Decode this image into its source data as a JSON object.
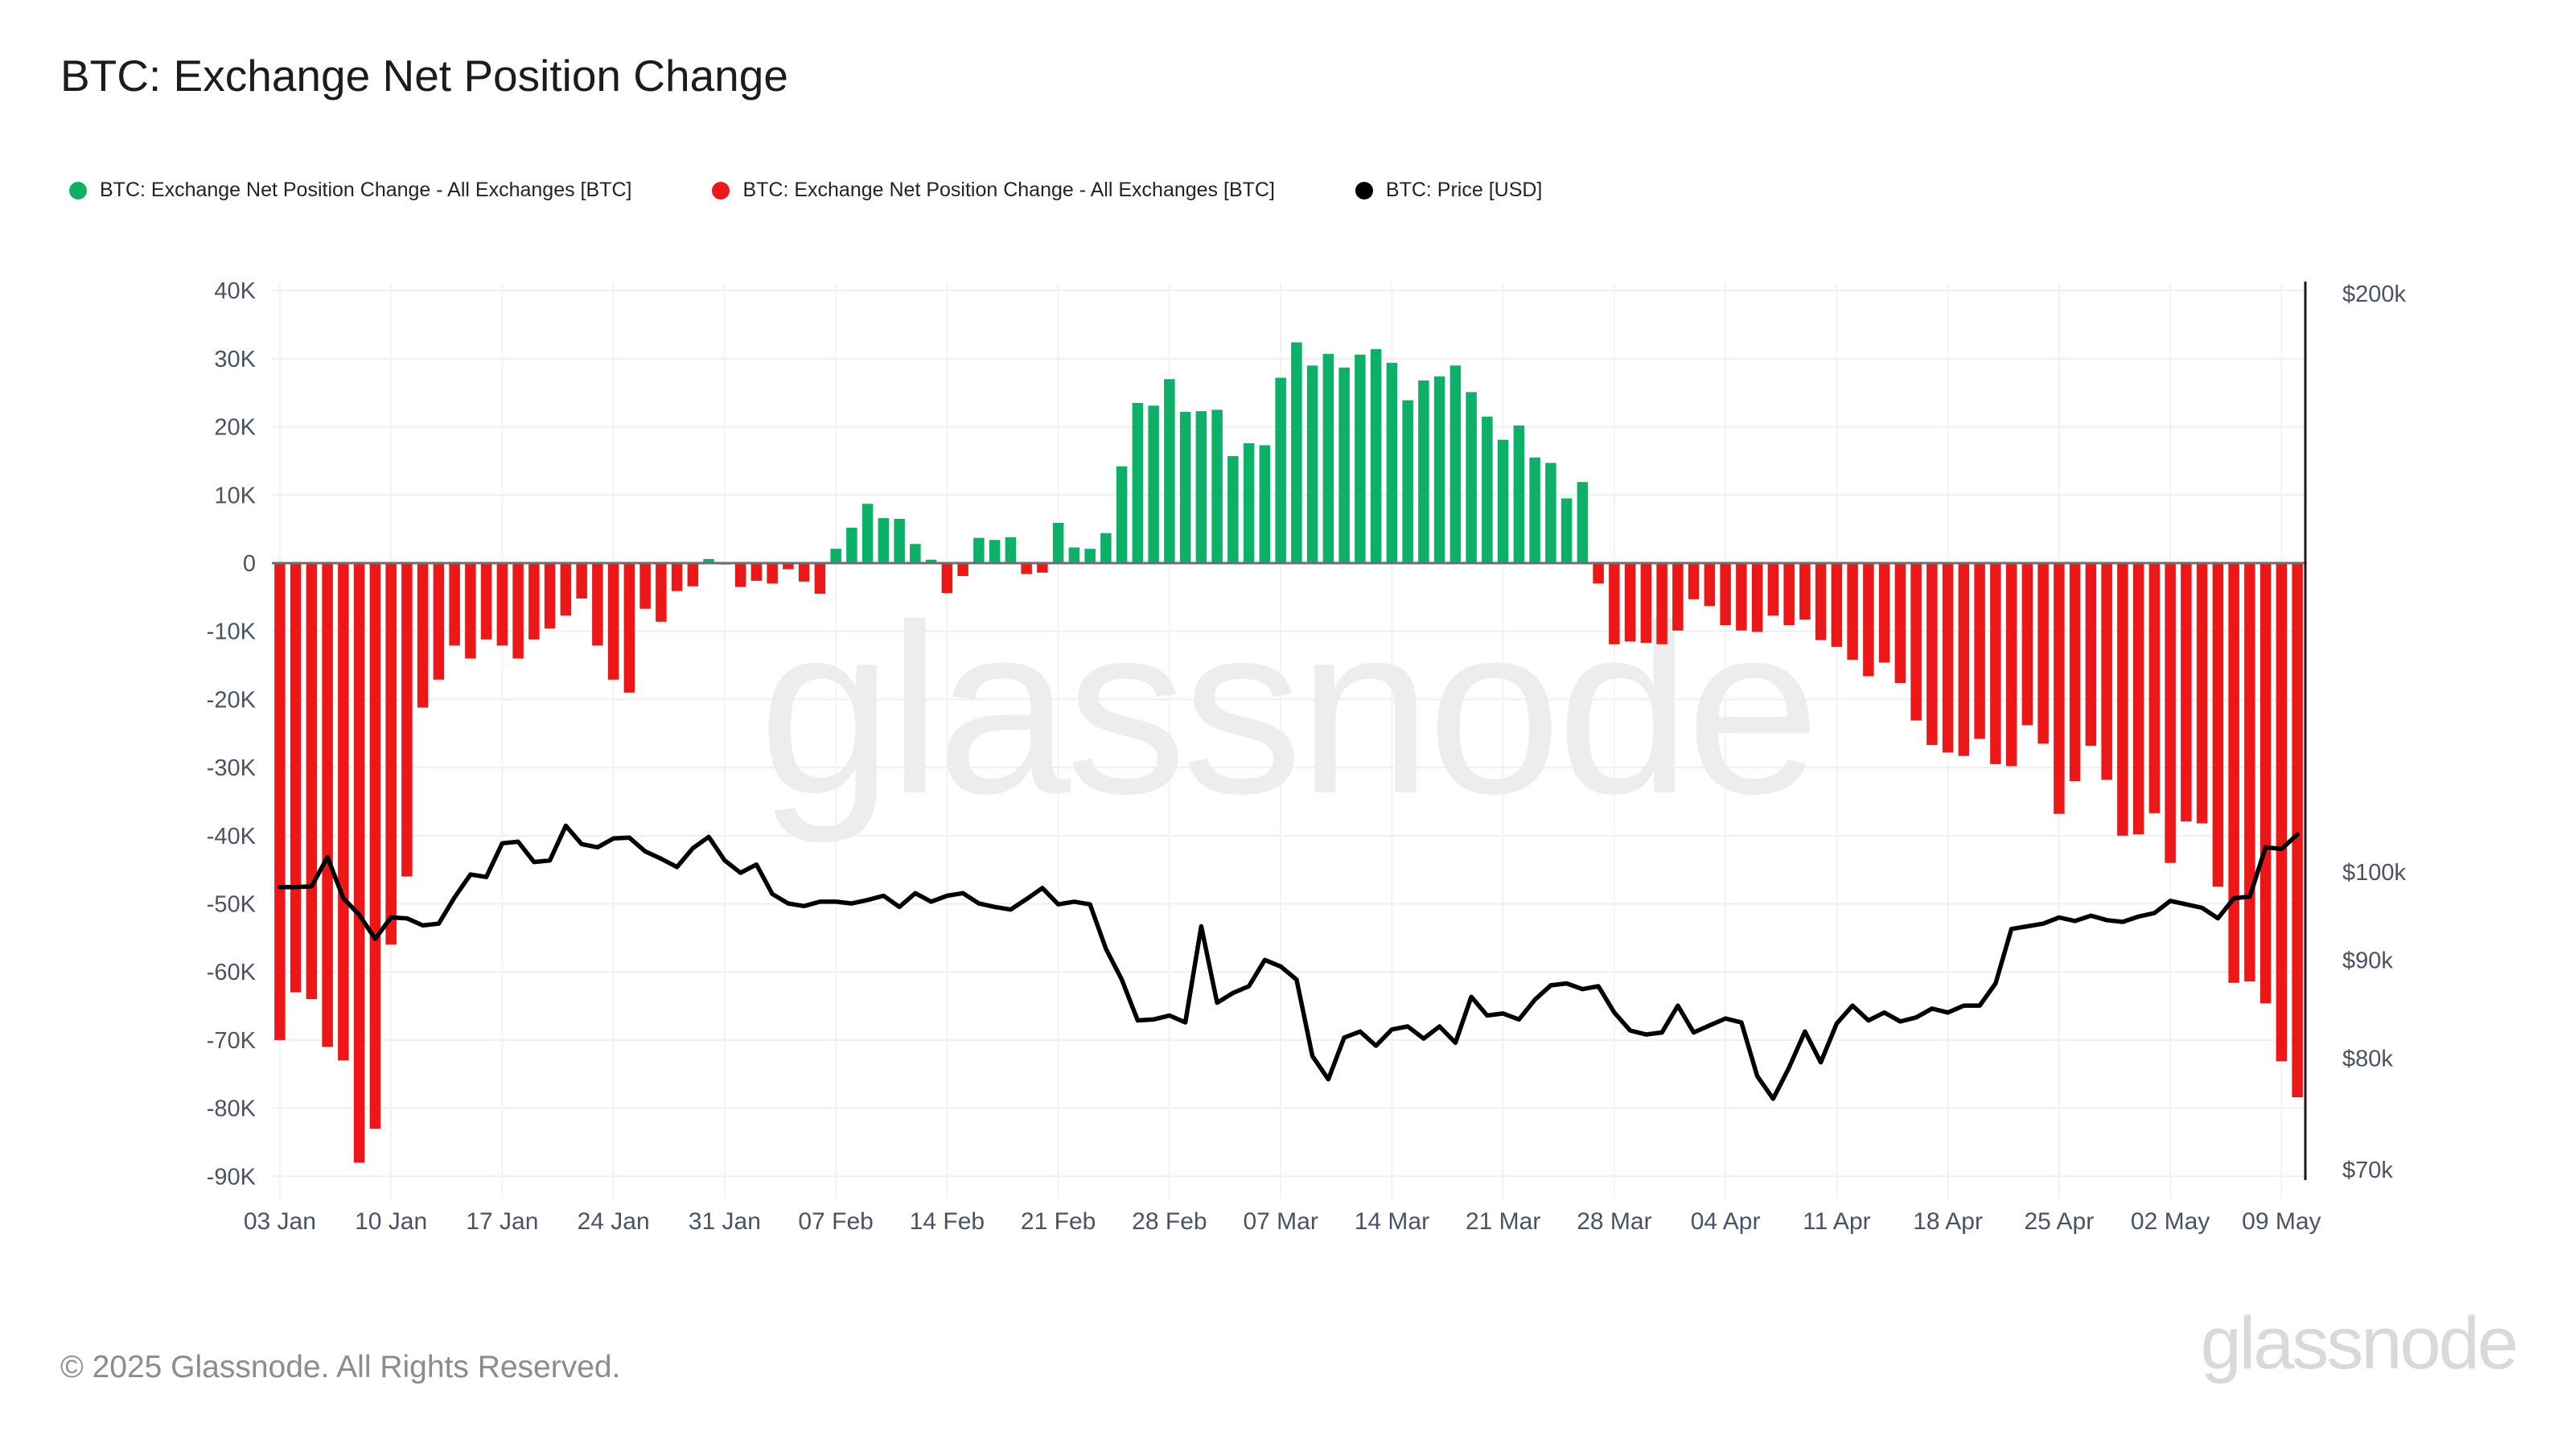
{
  "title": "BTC: Exchange Net Position Change",
  "legend": {
    "items": [
      {
        "label": "BTC: Exchange Net Position Change - All Exchanges [BTC]",
        "color": "#0bb167"
      },
      {
        "label": "BTC: Exchange Net Position Change - All Exchanges [BTC]",
        "color": "#ed1717"
      },
      {
        "label": "BTC: Price [USD]",
        "color": "#000000"
      }
    ]
  },
  "watermark": "glassnode",
  "footer": {
    "copyright": "© 2025 Glassnode. All Rights Reserved.",
    "brand": "glassnode"
  },
  "chart_data": {
    "type": "bar+line",
    "title": "BTC: Exchange Net Position Change",
    "x_daily_from": "03 Jan",
    "x_daily_to": "10 May",
    "x_tick_labels": [
      "03 Jan",
      "10 Jan",
      "17 Jan",
      "24 Jan",
      "31 Jan",
      "07 Feb",
      "14 Feb",
      "21 Feb",
      "28 Feb",
      "07 Mar",
      "14 Mar",
      "21 Mar",
      "28 Mar",
      "04 Apr",
      "11 Apr",
      "18 Apr",
      "25 Apr",
      "02 May",
      "09 May"
    ],
    "x_tick_day_indices": [
      0,
      7,
      14,
      21,
      28,
      35,
      42,
      49,
      56,
      63,
      70,
      77,
      84,
      91,
      98,
      105,
      112,
      119,
      126
    ],
    "y_axis_left": {
      "unit": "K BTC",
      "tick_labels": [
        "40K",
        "30K",
        "20K",
        "10K",
        "0",
        "-10K",
        "-20K",
        "-30K",
        "-40K",
        "-50K",
        "-60K",
        "-70K",
        "-80K",
        "-90K"
      ],
      "tick_values": [
        40,
        30,
        20,
        10,
        0,
        -10,
        -20,
        -30,
        -40,
        -50,
        -60,
        -70,
        -80,
        -90
      ],
      "range": [
        -90,
        40
      ],
      "grid": true
    },
    "y_axis_right": {
      "unit": "USD",
      "scale": "log",
      "tick_labels": [
        "$200k",
        "$100k",
        "$90k",
        "$80k",
        "$70k"
      ],
      "tick_values": [
        200,
        100,
        90,
        80,
        70
      ]
    },
    "series": [
      {
        "name": "BTC: Exchange Net Position Change - All Exchanges [BTC]",
        "type": "bar",
        "unit": "thousand BTC",
        "positive_color": "#0bb167",
        "negative_color": "#ed1717",
        "values": [
          -70,
          -63,
          -64,
          -71,
          -73,
          -88,
          -83,
          -56,
          -46,
          -21.2,
          -17.1,
          -12.1,
          -14,
          -11.2,
          -12.1,
          -14,
          -11.2,
          -9.6,
          -7.7,
          -5.2,
          -12.1,
          -17.1,
          -19,
          -6.7,
          -8.6,
          -4.1,
          -3.4,
          0.6,
          -0.2,
          -3.5,
          -2.6,
          -3,
          -0.9,
          -2.7,
          -4.5,
          2.1,
          5.2,
          8.7,
          6.6,
          6.5,
          2.8,
          0.5,
          -4.4,
          -1.9,
          3.7,
          3.4,
          3.8,
          -1.6,
          -1.4,
          5.9,
          2.3,
          2.1,
          4.4,
          14.2,
          23.5,
          23.1,
          27,
          22.2,
          22.3,
          22.5,
          15.7,
          17.6,
          17.3,
          27.2,
          32.4,
          29,
          30.7,
          28.7,
          30.6,
          31.4,
          29.4,
          23.9,
          26.8,
          27.4,
          29,
          25.1,
          21.5,
          18.1,
          20.2,
          15.5,
          14.7,
          9.5,
          11.9,
          -3,
          -11.9,
          -11.5,
          -11.7,
          -11.9,
          -9.9,
          -5.3,
          -6.3,
          -9.1,
          -9.9,
          -10.1,
          -7.7,
          -9.1,
          -8.3,
          -11.3,
          -12.3,
          -14.2,
          -16.6,
          -14.6,
          -17.6,
          -23.1,
          -26.7,
          -27.8,
          -28.3,
          -25.8,
          -29.5,
          -29.8,
          -23.8,
          -26.5,
          -36.8,
          -32,
          -26.8,
          -31.8,
          -40,
          -39.8,
          -36.7,
          -44,
          -37.9,
          -38.2,
          -47.5,
          -61.6,
          -61.4,
          -64.6,
          -73.1,
          -78.4
        ]
      },
      {
        "name": "BTC: Price [USD]",
        "type": "line",
        "unit": "thousand USD",
        "color": "#000000",
        "values": [
          98.2,
          98.2,
          98.3,
          101.8,
          96.9,
          95.0,
          92.3,
          94.7,
          94.6,
          93.8,
          94.0,
          97.0,
          99.7,
          99.4,
          103.5,
          103.7,
          101.2,
          101.4,
          105.7,
          103.4,
          103.0,
          104.1,
          104.2,
          102.5,
          101.6,
          100.6,
          102.9,
          104.3,
          101.4,
          99.9,
          100.9,
          97.4,
          96.3,
          96.0,
          96.5,
          96.5,
          96.3,
          96.7,
          97.2,
          95.9,
          97.5,
          96.5,
          97.2,
          97.5,
          96.3,
          95.9,
          95.6,
          96.8,
          98.1,
          96.2,
          96.5,
          96.2,
          91.2,
          87.9,
          83.7,
          83.8,
          84.2,
          83.5,
          93.7,
          85.5,
          86.5,
          87.2,
          90.0,
          89.3,
          87.9,
          80.2,
          78.0,
          82.0,
          82.6,
          81.2,
          82.8,
          83.1,
          81.9,
          83.1,
          81.5,
          86.1,
          84.2,
          84.4,
          83.8,
          85.8,
          87.3,
          87.5,
          86.9,
          87.2,
          84.5,
          82.7,
          82.3,
          82.5,
          85.2,
          82.5,
          83.2,
          83.9,
          83.5,
          78.3,
          76.2,
          79.1,
          82.6,
          79.6,
          83.4,
          85.2,
          83.7,
          84.5,
          83.6,
          84.0,
          84.9,
          84.5,
          85.2,
          85.2,
          87.5,
          93.4,
          93.7,
          94.0,
          94.7,
          94.3,
          94.9,
          94.4,
          94.2,
          94.8,
          95.2,
          96.6,
          96.2,
          95.8,
          94.6,
          96.9,
          97.1,
          103.0,
          102.8,
          104.6
        ]
      }
    ],
    "style": {
      "grid_color": "#efefef",
      "vertical_grid_color": "#f2f2f2",
      "zero_line_color": "#6e6e6e",
      "right_axis_line_color": "#1a1a1a",
      "tick_label_color": "#4a5264",
      "watermark_color": "#ededed",
      "background": "#ffffff"
    }
  }
}
